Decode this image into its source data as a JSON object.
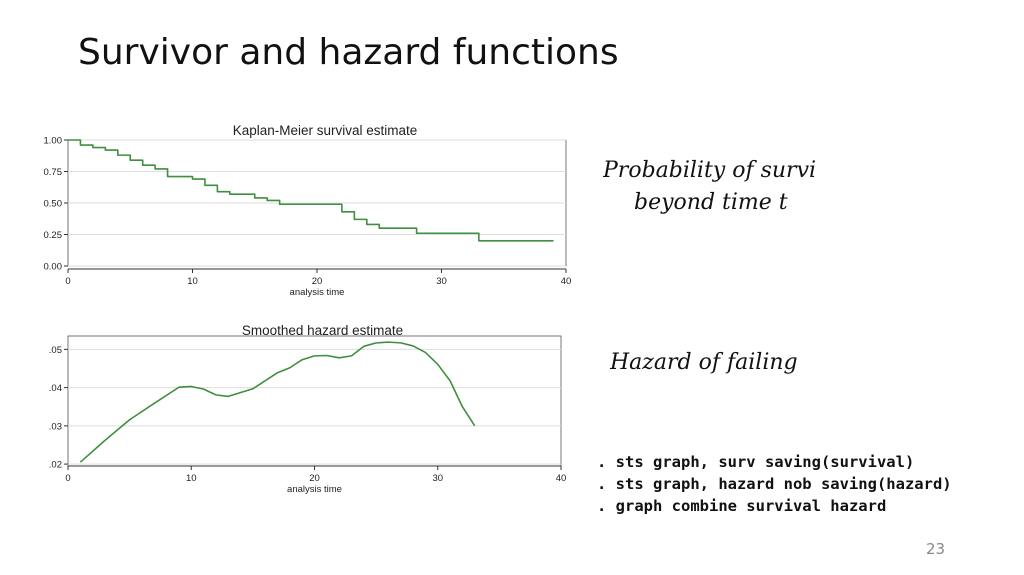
{
  "slide": {
    "title": "Survivor and hazard functions",
    "page_number": "23"
  },
  "annotations": {
    "survival_line1": "Probability of survi",
    "survival_line2": "beyond time t",
    "hazard": "Hazard of failing"
  },
  "code": {
    "lines": [
      ". sts graph, surv saving(survival)",
      ". sts graph, hazard nob saving(hazard)",
      ". graph combine survival hazard"
    ]
  },
  "colors": {
    "series": "#3f8f3f",
    "grid": "#dedede",
    "axis": "#333333"
  },
  "chart_data": [
    {
      "type": "line",
      "step": true,
      "title": "Kaplan-Meier survival estimate",
      "xlabel": "analysis time",
      "ylabel": "",
      "xlim": [
        0,
        40
      ],
      "ylim": [
        0,
        1
      ],
      "xticks": [
        0,
        10,
        20,
        30,
        40
      ],
      "yticks": [
        0,
        0.25,
        0.5,
        0.75,
        1
      ],
      "ytick_labels": [
        "0.00",
        "0.25",
        "0.50",
        "0.75",
        "1.00"
      ],
      "grid": true,
      "x": [
        0,
        1,
        2,
        3,
        4,
        5,
        6,
        7,
        8,
        10,
        11,
        12,
        13,
        15,
        16,
        17,
        22,
        23,
        24,
        25,
        28,
        33,
        39
      ],
      "y": [
        1.0,
        0.96,
        0.94,
        0.92,
        0.88,
        0.84,
        0.8,
        0.77,
        0.71,
        0.69,
        0.64,
        0.59,
        0.57,
        0.54,
        0.52,
        0.49,
        0.43,
        0.37,
        0.33,
        0.3,
        0.26,
        0.2,
        0.2
      ]
    },
    {
      "type": "line",
      "title": "Smoothed hazard estimate",
      "xlabel": "analysis time",
      "ylabel": "",
      "xlim": [
        0,
        40
      ],
      "ylim": [
        0.0195,
        0.0535
      ],
      "xticks": [
        0,
        10,
        20,
        30,
        40
      ],
      "yticks": [
        0.02,
        0.03,
        0.04,
        0.05
      ],
      "ytick_labels": [
        ".02",
        ".03",
        ".04",
        ".05"
      ],
      "grid": true,
      "x": [
        1,
        3,
        5,
        7,
        9,
        10,
        11,
        12,
        13,
        15,
        17,
        18,
        19,
        20,
        21,
        22,
        23,
        24,
        25,
        26,
        27,
        28,
        29,
        30,
        31,
        32,
        33
      ],
      "y": [
        0.0205,
        0.0262,
        0.0316,
        0.0359,
        0.0401,
        0.0403,
        0.0396,
        0.0381,
        0.0377,
        0.0397,
        0.0439,
        0.0452,
        0.0473,
        0.0483,
        0.0484,
        0.0478,
        0.0483,
        0.0508,
        0.0517,
        0.0519,
        0.0517,
        0.0509,
        0.0492,
        0.0461,
        0.0418,
        0.035,
        0.03
      ]
    }
  ]
}
